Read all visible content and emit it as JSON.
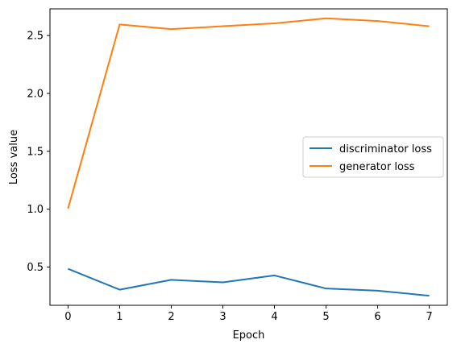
{
  "chart_data": {
    "type": "line",
    "title": "",
    "xlabel": "Epoch",
    "ylabel": "Loss value",
    "x": [
      0,
      1,
      2,
      3,
      4,
      5,
      6,
      7
    ],
    "xticks": [
      "0",
      "1",
      "2",
      "3",
      "4",
      "5",
      "6",
      "7"
    ],
    "yticks": [
      "0.5",
      "1.0",
      "1.5",
      "2.0",
      "2.5"
    ],
    "ytick_values": [
      0.5,
      1.0,
      1.5,
      2.0,
      2.5
    ],
    "xlim": [
      -0.35,
      7.35
    ],
    "ylim": [
      0.17,
      2.73
    ],
    "grid": false,
    "legend_position": "center-right",
    "series": [
      {
        "name": "discriminator loss",
        "color": "#1f77b4",
        "values": [
          0.485,
          0.305,
          0.39,
          0.368,
          0.428,
          0.315,
          0.296,
          0.253
        ]
      },
      {
        "name": "generator loss",
        "color": "#ff7f0e",
        "values": [
          1.005,
          2.595,
          2.555,
          2.58,
          2.605,
          2.648,
          2.625,
          2.58
        ]
      }
    ]
  }
}
